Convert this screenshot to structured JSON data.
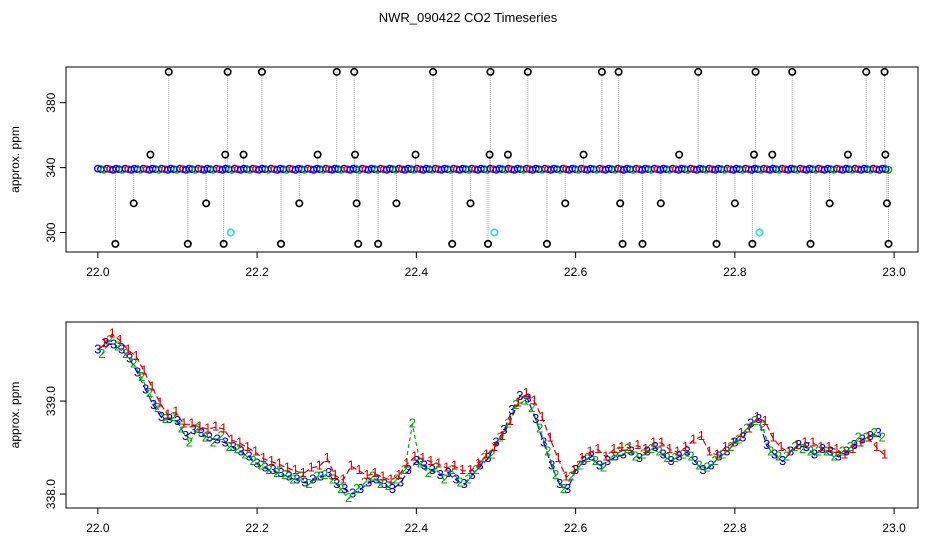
{
  "title": "NWR_090422  CO2 Timeseries",
  "colors": {
    "axis": "#000000",
    "grid_line": "#999999",
    "point_outline": "#000000",
    "point_blue": "#0000ff",
    "point_green": "#00aa00",
    "point_red": "#ff0000",
    "point_cyan": "#33dddd",
    "label_1": "#dd0000",
    "label_2": "#00aa00",
    "label_3": "#0000cc"
  },
  "chart_data": [
    {
      "type": "scatter",
      "panel": "top",
      "title": "NWR_090422  CO2 Timeseries",
      "xlabel": "",
      "ylabel": "approx. ppm",
      "xlim": [
        21.96,
        23.03
      ],
      "ylim": [
        288,
        402
      ],
      "xticks": [
        {
          "value": 22.0,
          "label": "22.0"
        },
        {
          "value": 22.2,
          "label": "22.2"
        },
        {
          "value": 22.4,
          "label": "22.4"
        },
        {
          "value": 22.6,
          "label": "22.6"
        },
        {
          "value": 22.8,
          "label": "22.8"
        },
        {
          "value": 23.0,
          "label": "23.0"
        }
      ],
      "yticks": [
        {
          "value": 300,
          "label": "300"
        },
        {
          "value": 340,
          "label": "340"
        },
        {
          "value": 380,
          "label": "380"
        }
      ],
      "baseline": 339,
      "baseline_range": [
        22.0,
        22.993
      ],
      "spikes": [
        {
          "x": 22.022,
          "y": 293
        },
        {
          "x": 22.045,
          "y": 318
        },
        {
          "x": 22.066,
          "y": 348
        },
        {
          "x": 22.089,
          "y": 399
        },
        {
          "x": 22.113,
          "y": 293
        },
        {
          "x": 22.136,
          "y": 318
        },
        {
          "x": 22.158,
          "y": 293
        },
        {
          "x": 22.16,
          "y": 348
        },
        {
          "x": 22.163,
          "y": 399
        },
        {
          "x": 22.183,
          "y": 348
        },
        {
          "x": 22.206,
          "y": 399
        },
        {
          "x": 22.23,
          "y": 293
        },
        {
          "x": 22.253,
          "y": 318
        },
        {
          "x": 22.276,
          "y": 348
        },
        {
          "x": 22.3,
          "y": 399
        },
        {
          "x": 22.322,
          "y": 399
        },
        {
          "x": 22.323,
          "y": 348
        },
        {
          "x": 22.325,
          "y": 318
        },
        {
          "x": 22.327,
          "y": 293
        },
        {
          "x": 22.352,
          "y": 293
        },
        {
          "x": 22.375,
          "y": 318
        },
        {
          "x": 22.399,
          "y": 348
        },
        {
          "x": 22.421,
          "y": 399
        },
        {
          "x": 22.445,
          "y": 293
        },
        {
          "x": 22.468,
          "y": 318
        },
        {
          "x": 22.49,
          "y": 293
        },
        {
          "x": 22.492,
          "y": 348
        },
        {
          "x": 22.493,
          "y": 399
        },
        {
          "x": 22.515,
          "y": 348
        },
        {
          "x": 22.54,
          "y": 399
        },
        {
          "x": 22.564,
          "y": 293
        },
        {
          "x": 22.587,
          "y": 318
        },
        {
          "x": 22.61,
          "y": 348
        },
        {
          "x": 22.633,
          "y": 399
        },
        {
          "x": 22.654,
          "y": 399
        },
        {
          "x": 22.656,
          "y": 318
        },
        {
          "x": 22.659,
          "y": 293
        },
        {
          "x": 22.684,
          "y": 293
        },
        {
          "x": 22.707,
          "y": 318
        },
        {
          "x": 22.73,
          "y": 348
        },
        {
          "x": 22.754,
          "y": 399
        },
        {
          "x": 22.777,
          "y": 293
        },
        {
          "x": 22.8,
          "y": 318
        },
        {
          "x": 22.822,
          "y": 293
        },
        {
          "x": 22.824,
          "y": 348
        },
        {
          "x": 22.826,
          "y": 399
        },
        {
          "x": 22.847,
          "y": 348
        },
        {
          "x": 22.872,
          "y": 399
        },
        {
          "x": 22.895,
          "y": 293
        },
        {
          "x": 22.919,
          "y": 318
        },
        {
          "x": 22.942,
          "y": 348
        },
        {
          "x": 22.965,
          "y": 399
        },
        {
          "x": 22.988,
          "y": 399
        },
        {
          "x": 22.989,
          "y": 348
        },
        {
          "x": 22.991,
          "y": 318
        },
        {
          "x": 22.993,
          "y": 293
        }
      ],
      "cyan_points": [
        {
          "x": 22.167,
          "y": 300
        },
        {
          "x": 22.498,
          "y": 300
        },
        {
          "x": 22.831,
          "y": 300
        }
      ]
    },
    {
      "type": "line",
      "panel": "bottom",
      "xlabel": "",
      "ylabel": "approx. ppm",
      "xlim": [
        21.96,
        23.03
      ],
      "ylim": [
        337.85,
        339.85
      ],
      "xticks": [
        {
          "value": 22.0,
          "label": "22.0"
        },
        {
          "value": 22.2,
          "label": "22.2"
        },
        {
          "value": 22.4,
          "label": "22.4"
        },
        {
          "value": 22.6,
          "label": "22.6"
        },
        {
          "value": 22.8,
          "label": "22.8"
        },
        {
          "value": 23.0,
          "label": "23.0"
        }
      ],
      "yticks": [
        {
          "value": 338.0,
          "label": "338.0"
        },
        {
          "value": 339.0,
          "label": "339.0"
        }
      ],
      "series_markers": [
        "1",
        "2",
        "3"
      ],
      "series": [
        {
          "name": "3",
          "x": [
            22.0,
            22.01,
            22.02,
            22.03,
            22.04,
            22.05,
            22.06,
            22.07,
            22.08,
            22.09,
            22.1,
            22.11,
            22.12,
            22.13,
            22.14,
            22.15,
            22.16,
            22.17,
            22.18,
            22.19,
            22.2,
            22.21,
            22.22,
            22.23,
            22.24,
            22.25,
            22.26,
            22.27,
            22.28,
            22.29,
            22.3,
            22.31,
            22.32,
            22.33,
            22.34,
            22.35,
            22.36,
            22.37,
            22.38,
            22.39,
            22.4,
            22.41,
            22.42,
            22.43,
            22.44,
            22.45,
            22.46,
            22.47,
            22.48,
            22.49,
            22.5,
            22.51,
            22.52,
            22.53,
            22.54,
            22.55,
            22.56,
            22.57,
            22.58,
            22.59,
            22.6,
            22.61,
            22.62,
            22.63,
            22.64,
            22.65,
            22.66,
            22.67,
            22.68,
            22.69,
            22.7,
            22.71,
            22.72,
            22.73,
            22.74,
            22.75,
            22.76,
            22.77,
            22.78,
            22.79,
            22.8,
            22.81,
            22.82,
            22.83,
            22.84,
            22.85,
            22.86,
            22.87,
            22.88,
            22.89,
            22.9,
            22.91,
            22.92,
            22.93,
            22.94,
            22.95,
            22.96,
            22.97,
            22.98
          ],
          "values": [
            339.55,
            339.62,
            339.6,
            339.55,
            339.45,
            339.3,
            339.12,
            338.95,
            338.82,
            338.8,
            338.78,
            338.62,
            338.68,
            338.65,
            338.6,
            338.58,
            338.55,
            338.5,
            338.45,
            338.4,
            338.32,
            338.28,
            338.25,
            338.22,
            338.18,
            338.15,
            338.12,
            338.15,
            338.18,
            338.22,
            338.1,
            338.05,
            338.0,
            338.05,
            338.12,
            338.15,
            338.1,
            338.05,
            338.12,
            338.25,
            338.35,
            338.3,
            338.25,
            338.2,
            338.22,
            338.15,
            338.1,
            338.2,
            338.3,
            338.38,
            338.55,
            338.68,
            338.9,
            339.05,
            339.02,
            338.8,
            338.55,
            338.3,
            338.1,
            338.05,
            338.25,
            338.35,
            338.4,
            338.3,
            338.35,
            338.4,
            338.42,
            338.45,
            338.38,
            338.45,
            338.5,
            338.42,
            338.35,
            338.4,
            338.45,
            338.35,
            338.25,
            338.3,
            338.4,
            338.45,
            338.55,
            338.6,
            338.75,
            338.8,
            338.52,
            338.42,
            338.35,
            338.45,
            338.52,
            338.5,
            338.42,
            338.48,
            338.45,
            338.4,
            338.45,
            338.52,
            338.58,
            338.62,
            338.65
          ]
        },
        {
          "name": "2",
          "x": [
            22.005,
            22.015,
            22.025,
            22.035,
            22.045,
            22.055,
            22.065,
            22.075,
            22.085,
            22.095,
            22.105,
            22.115,
            22.125,
            22.135,
            22.145,
            22.155,
            22.165,
            22.175,
            22.185,
            22.195,
            22.205,
            22.215,
            22.225,
            22.235,
            22.245,
            22.255,
            22.265,
            22.275,
            22.285,
            22.295,
            22.305,
            22.315,
            22.325,
            22.335,
            22.345,
            22.355,
            22.365,
            22.375,
            22.385,
            22.395,
            22.405,
            22.415,
            22.425,
            22.435,
            22.445,
            22.455,
            22.465,
            22.475,
            22.485,
            22.495,
            22.505,
            22.515,
            22.525,
            22.535,
            22.545,
            22.555,
            22.565,
            22.575,
            22.585,
            22.595,
            22.605,
            22.615,
            22.625,
            22.635,
            22.645,
            22.655,
            22.665,
            22.675,
            22.685,
            22.695,
            22.705,
            22.715,
            22.725,
            22.735,
            22.745,
            22.755,
            22.765,
            22.775,
            22.785,
            22.795,
            22.805,
            22.815,
            22.825,
            22.835,
            22.845,
            22.855,
            22.865,
            22.875,
            22.885,
            22.895,
            22.905,
            22.915,
            22.925,
            22.935,
            22.945,
            22.955,
            22.965,
            22.975,
            22.985
          ],
          "values": [
            339.5,
            339.65,
            339.58,
            339.5,
            339.4,
            339.25,
            339.08,
            338.92,
            338.8,
            338.82,
            338.7,
            338.55,
            338.7,
            338.6,
            338.55,
            338.62,
            338.5,
            338.48,
            338.42,
            338.35,
            338.3,
            338.25,
            338.22,
            338.2,
            338.15,
            338.18,
            338.1,
            338.18,
            338.2,
            338.15,
            338.05,
            337.95,
            338.05,
            338.12,
            338.18,
            338.1,
            338.08,
            338.15,
            338.25,
            338.75,
            338.32,
            338.22,
            338.28,
            338.15,
            338.25,
            338.12,
            338.15,
            338.25,
            338.38,
            338.42,
            338.6,
            338.75,
            338.95,
            339.0,
            338.92,
            338.7,
            338.45,
            338.2,
            338.05,
            338.18,
            338.3,
            338.38,
            338.35,
            338.28,
            338.4,
            338.45,
            338.48,
            338.4,
            338.42,
            338.48,
            338.45,
            338.38,
            338.38,
            338.42,
            338.4,
            338.3,
            338.28,
            338.35,
            338.42,
            338.5,
            338.58,
            338.7,
            338.78,
            338.72,
            338.45,
            338.4,
            338.4,
            338.5,
            338.48,
            338.45,
            338.45,
            338.45,
            338.4,
            338.45,
            338.5,
            338.6,
            338.6,
            338.65,
            338.6
          ]
        },
        {
          "name": "1",
          "x": [
            22.008,
            22.018,
            22.028,
            22.038,
            22.048,
            22.058,
            22.068,
            22.078,
            22.088,
            22.098,
            22.108,
            22.118,
            22.128,
            22.138,
            22.148,
            22.158,
            22.168,
            22.178,
            22.188,
            22.198,
            22.208,
            22.218,
            22.228,
            22.238,
            22.248,
            22.258,
            22.268,
            22.278,
            22.288,
            22.298,
            22.308,
            22.318,
            22.328,
            22.338,
            22.348,
            22.358,
            22.368,
            22.378,
            22.388,
            22.398,
            22.408,
            22.418,
            22.428,
            22.438,
            22.448,
            22.458,
            22.468,
            22.478,
            22.488,
            22.498,
            22.508,
            22.518,
            22.528,
            22.538,
            22.548,
            22.558,
            22.568,
            22.578,
            22.588,
            22.598,
            22.608,
            22.618,
            22.628,
            22.638,
            22.648,
            22.658,
            22.668,
            22.678,
            22.688,
            22.698,
            22.708,
            22.718,
            22.728,
            22.738,
            22.748,
            22.758,
            22.768,
            22.778,
            22.788,
            22.798,
            22.808,
            22.818,
            22.828,
            22.838,
            22.848,
            22.858,
            22.868,
            22.878,
            22.888,
            22.898,
            22.908,
            22.918,
            22.928,
            22.938,
            22.948,
            22.958,
            22.968,
            22.978,
            22.988
          ],
          "values": [
            339.62,
            339.72,
            339.65,
            339.55,
            339.48,
            339.32,
            339.15,
            338.98,
            338.85,
            338.88,
            338.75,
            338.75,
            338.72,
            338.7,
            338.72,
            338.7,
            338.58,
            338.55,
            338.5,
            338.45,
            338.38,
            338.35,
            338.32,
            338.28,
            338.25,
            338.22,
            338.28,
            338.3,
            338.38,
            338.2,
            338.15,
            338.3,
            338.25,
            338.2,
            338.22,
            338.18,
            338.15,
            338.2,
            338.32,
            338.4,
            338.38,
            338.35,
            338.32,
            338.28,
            338.3,
            338.25,
            338.25,
            338.32,
            338.42,
            338.5,
            338.62,
            338.78,
            338.98,
            339.08,
            339.0,
            338.82,
            338.6,
            338.38,
            338.18,
            338.25,
            338.38,
            338.45,
            338.48,
            338.4,
            338.48,
            338.5,
            338.5,
            338.52,
            338.48,
            338.55,
            338.55,
            338.48,
            338.45,
            338.5,
            338.58,
            338.62,
            338.45,
            338.42,
            338.5,
            338.55,
            338.65,
            338.7,
            338.82,
            338.78,
            338.6,
            338.5,
            338.45,
            338.52,
            338.55,
            338.55,
            338.5,
            338.5,
            338.48,
            338.42,
            338.48,
            338.55,
            338.6,
            338.5,
            338.42
          ]
        }
      ]
    }
  ]
}
